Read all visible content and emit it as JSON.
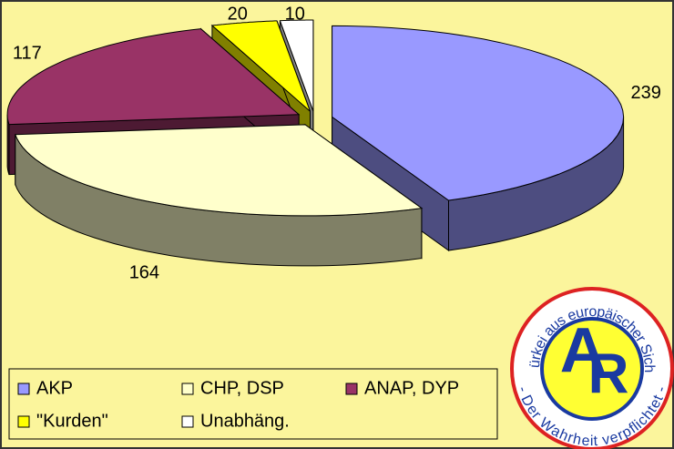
{
  "chart_data": {
    "type": "pie",
    "categories": [
      "AKP",
      "CHP, DSP",
      "ANAP, DYP",
      "\"Kurden\"",
      "Unabhäng."
    ],
    "values": [
      239,
      164,
      117,
      20,
      10
    ],
    "colors": [
      "#9999ff",
      "#ffffcc",
      "#993366",
      "#ffff00",
      "#ffffff"
    ],
    "legend": "bottom-left"
  },
  "logo": {
    "top_text": "Türkei aus europäischer Sicht",
    "bottom_text": "- Der Wahrheit verpflichtet -",
    "letter_1": "A",
    "letter_2": "R"
  }
}
